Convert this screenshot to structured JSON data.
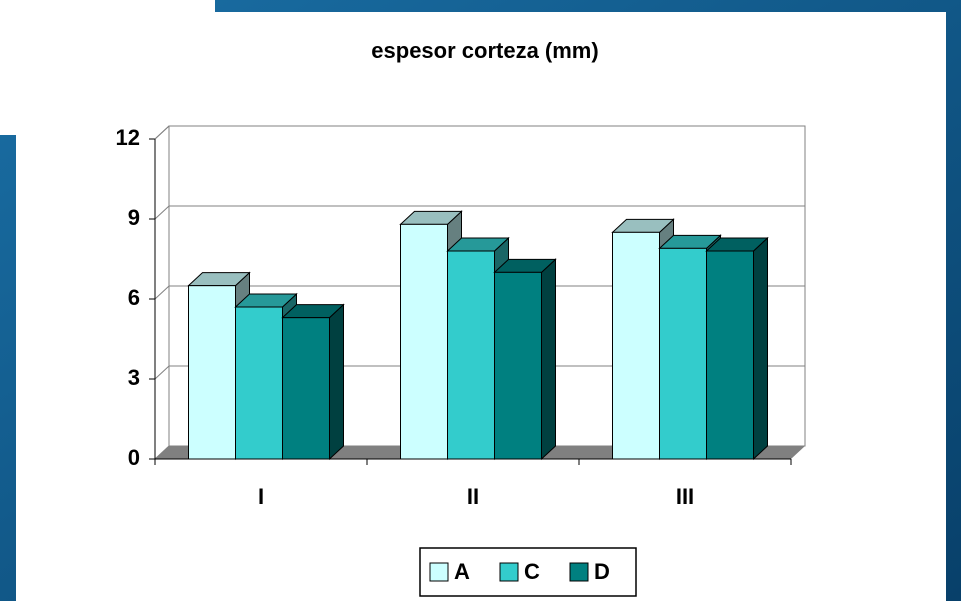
{
  "chart_data": {
    "type": "bar",
    "title": "espesor corteza (mm)",
    "categories": [
      "I",
      "II",
      "III"
    ],
    "series": [
      {
        "name": "A",
        "color": "#ccffff",
        "values": [
          6.5,
          8.8,
          8.5
        ]
      },
      {
        "name": "C",
        "color": "#33cccc",
        "values": [
          5.7,
          7.8,
          7.9
        ]
      },
      {
        "name": "D",
        "color": "#008080",
        "values": [
          5.3,
          7.0,
          7.8
        ]
      }
    ],
    "ylim": [
      0,
      12
    ],
    "yticks": [
      0,
      3,
      6,
      9,
      12
    ],
    "grid": true,
    "legend": "bottom"
  }
}
